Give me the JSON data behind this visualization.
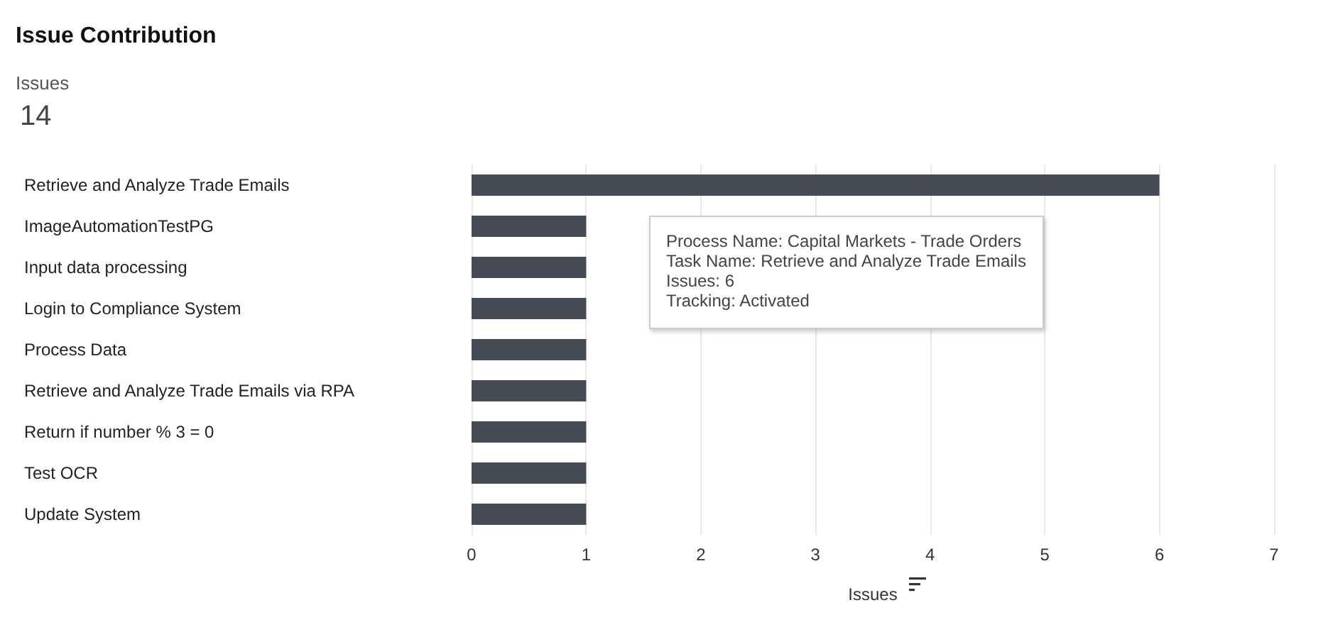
{
  "chart_data": {
    "type": "bar",
    "orientation": "horizontal",
    "title": "Issue Contribution",
    "subtitle": "Issues",
    "xlabel": "Issues",
    "categories": [
      "Retrieve and Analyze Trade Emails",
      "ImageAutomationTestPG",
      "Input data processing",
      "Login to Compliance System",
      "Process Data",
      "Retrieve and Analyze Trade Emails via RPA",
      "Return if number % 3 = 0",
      "Test OCR",
      "Update System"
    ],
    "values": [
      6,
      1,
      1,
      1,
      1,
      1,
      1,
      1,
      1
    ],
    "color": "#464c55",
    "xlim": [
      0,
      7
    ],
    "xticks": [
      0,
      1,
      2,
      3,
      4,
      5,
      6,
      7
    ],
    "grid": "x",
    "annotations": [
      "14",
      "Process Name: Capital Markets - Trade Orders",
      "Task Name: Retrieve and Analyze Trade Emails",
      "Issues: 6",
      "Tracking: Activated"
    ]
  }
}
